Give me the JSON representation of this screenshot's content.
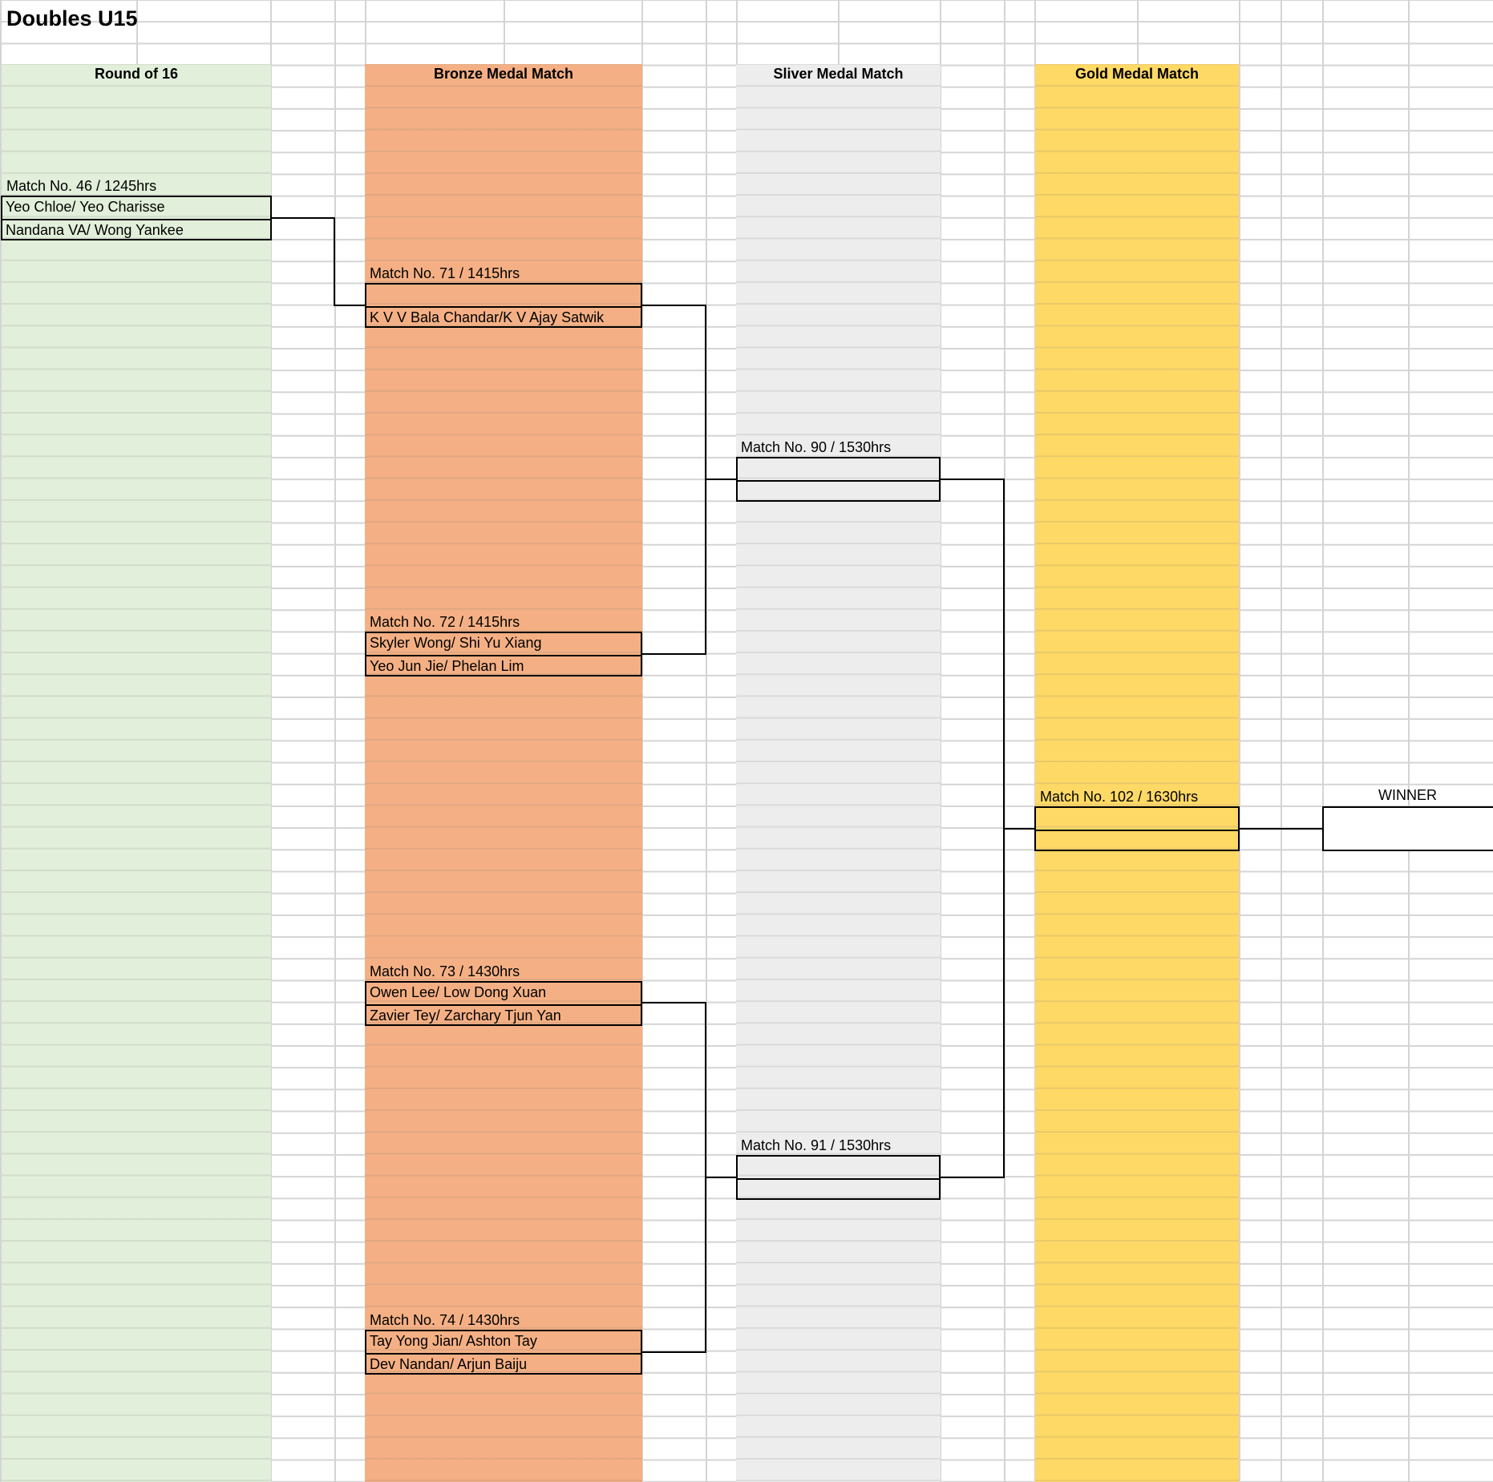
{
  "sheet": {
    "title": "Doubles U15"
  },
  "columns": {
    "round_of_16": "Round of 16",
    "bronze": "Bronze Medal Match",
    "silver": "Sliver Medal Match",
    "gold": "Gold Medal Match"
  },
  "colors": {
    "round_of_16_fill": "#e2efda",
    "bronze_fill": "#f4b084",
    "silver_fill": "#ededed",
    "gold_fill": "#ffd966",
    "gridline": "#d4d4d4",
    "bracket_line": "#000000"
  },
  "matches": {
    "m46": {
      "label": "Match No. 46 / 1245hrs",
      "team1": "Yeo Chloe/ Yeo Charisse",
      "team2": "Nandana VA/ Wong Yankee"
    },
    "m71": {
      "label": "Match No. 71 / 1415hrs",
      "team1": "",
      "team2": "K V V Bala Chandar/K V Ajay Satwik"
    },
    "m72": {
      "label": "Match No. 72 / 1415hrs",
      "team1": "Skyler Wong/ Shi Yu Xiang",
      "team2": "Yeo Jun Jie/ Phelan Lim"
    },
    "m73": {
      "label": "Match No. 73 / 1430hrs",
      "team1": "Owen Lee/ Low Dong Xuan",
      "team2": "Zavier Tey/ Zarchary Tjun Yan"
    },
    "m74": {
      "label": "Match No. 74 / 1430hrs",
      "team1": "Tay Yong Jian/ Ashton Tay",
      "team2": "Dev Nandan/ Arjun Baiju"
    },
    "m90": {
      "label": "Match No. 90 / 1530hrs",
      "team1": "",
      "team2": ""
    },
    "m91": {
      "label": "Match No. 91 / 1530hrs",
      "team1": "",
      "team2": ""
    },
    "m102": {
      "label": "Match No. 102 / 1630hrs",
      "team1": "",
      "team2": ""
    }
  },
  "winner": {
    "label": "WINNER",
    "value": ""
  }
}
